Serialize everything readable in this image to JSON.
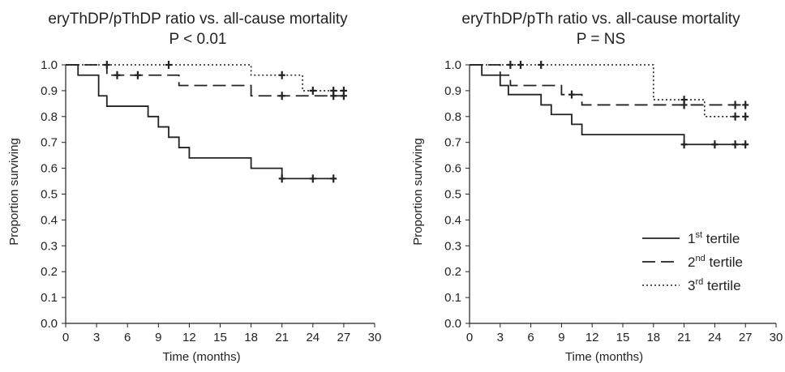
{
  "chart_data": [
    {
      "type": "line",
      "title": "eryThDP/pThDP ratio vs. all-cause mortality",
      "subtitle": "P < 0.01",
      "xlabel": "Time (months)",
      "ylabel": "Proportion surviving",
      "xlim": [
        0,
        30
      ],
      "ylim": [
        0,
        1.0
      ],
      "xticks": [
        0,
        3,
        6,
        9,
        12,
        15,
        18,
        21,
        24,
        27,
        30
      ],
      "yticks": [
        0.0,
        0.1,
        0.2,
        0.3,
        0.4,
        0.5,
        0.6,
        0.7,
        0.8,
        0.9,
        1.0
      ],
      "grid": false,
      "series": [
        {
          "name": "1st tertile",
          "style": "solid",
          "steps": [
            [
              0,
              1.0
            ],
            [
              1.2,
              0.96
            ],
            [
              3.2,
              0.88
            ],
            [
              4,
              0.84
            ],
            [
              8,
              0.8
            ],
            [
              9,
              0.76
            ],
            [
              10,
              0.72
            ],
            [
              11,
              0.68
            ],
            [
              12,
              0.64
            ],
            [
              18,
              0.6
            ],
            [
              21,
              0.56
            ],
            [
              26,
              0.56
            ]
          ],
          "censored": [
            [
              21,
              0.56
            ],
            [
              24,
              0.56
            ],
            [
              26,
              0.56
            ]
          ]
        },
        {
          "name": "2nd tertile",
          "style": "dashed",
          "steps": [
            [
              0,
              1.0
            ],
            [
              4,
              0.96
            ],
            [
              11,
              0.92
            ],
            [
              18,
              0.88
            ],
            [
              27,
              0.88
            ]
          ],
          "censored": [
            [
              5,
              0.96
            ],
            [
              7,
              0.96
            ],
            [
              21,
              0.88
            ],
            [
              26,
              0.88
            ],
            [
              27,
              0.88
            ]
          ]
        },
        {
          "name": "3rd tertile",
          "style": "dotted",
          "steps": [
            [
              0,
              1.0
            ],
            [
              18,
              0.96
            ],
            [
              23,
              0.9
            ],
            [
              27,
              0.9
            ]
          ],
          "censored": [
            [
              4,
              1.0
            ],
            [
              10,
              1.0
            ],
            [
              21,
              0.96
            ],
            [
              24,
              0.9
            ],
            [
              26,
              0.9
            ],
            [
              27,
              0.9
            ]
          ]
        }
      ]
    },
    {
      "type": "line",
      "title": "eryThDP/pTh ratio vs. all-cause mortality",
      "subtitle": "P = NS",
      "xlabel": "Time (months)",
      "ylabel": "Proportion surviving",
      "xlim": [
        0,
        30
      ],
      "ylim": [
        0,
        1.0
      ],
      "xticks": [
        0,
        3,
        6,
        9,
        12,
        15,
        18,
        21,
        24,
        27,
        30
      ],
      "yticks": [
        0.0,
        0.1,
        0.2,
        0.3,
        0.4,
        0.5,
        0.6,
        0.7,
        0.8,
        0.9,
        1.0
      ],
      "grid": false,
      "legend": {
        "placement": "bottom-right",
        "entries": [
          {
            "num": "1",
            "sup": "st",
            "text": " tertile",
            "style": "solid"
          },
          {
            "num": "2",
            "sup": "nd",
            "text": " tertile",
            "style": "dashed"
          },
          {
            "num": "3",
            "sup": "rd",
            "text": " tertile",
            "style": "dotted"
          }
        ]
      },
      "series": [
        {
          "name": "1st tertile",
          "style": "solid",
          "steps": [
            [
              0,
              1.0
            ],
            [
              1.2,
              0.96
            ],
            [
              3,
              0.92
            ],
            [
              3.8,
              0.885
            ],
            [
              7,
              0.845
            ],
            [
              8,
              0.808
            ],
            [
              10,
              0.77
            ],
            [
              11,
              0.73
            ],
            [
              21,
              0.692
            ],
            [
              27,
              0.692
            ]
          ],
          "censored": [
            [
              21,
              0.692
            ],
            [
              24,
              0.692
            ],
            [
              26,
              0.692
            ],
            [
              27,
              0.692
            ]
          ]
        },
        {
          "name": "2nd tertile",
          "style": "dashed",
          "steps": [
            [
              0,
              1.0
            ],
            [
              3,
              0.96
            ],
            [
              4,
              0.92
            ],
            [
              9,
              0.885
            ],
            [
              11,
              0.845
            ],
            [
              27,
              0.845
            ]
          ],
          "censored": [
            [
              10,
              0.885
            ],
            [
              21,
              0.845
            ],
            [
              26,
              0.845
            ],
            [
              27,
              0.845
            ]
          ]
        },
        {
          "name": "3rd tertile",
          "style": "dotted",
          "steps": [
            [
              0,
              1.0
            ],
            [
              18,
              0.865
            ],
            [
              23,
              0.8
            ],
            [
              27,
              0.8
            ]
          ],
          "censored": [
            [
              4,
              1.0
            ],
            [
              5,
              1.0
            ],
            [
              7,
              1.0
            ],
            [
              21,
              0.865
            ],
            [
              26,
              0.8
            ],
            [
              27,
              0.8
            ]
          ]
        }
      ]
    }
  ]
}
